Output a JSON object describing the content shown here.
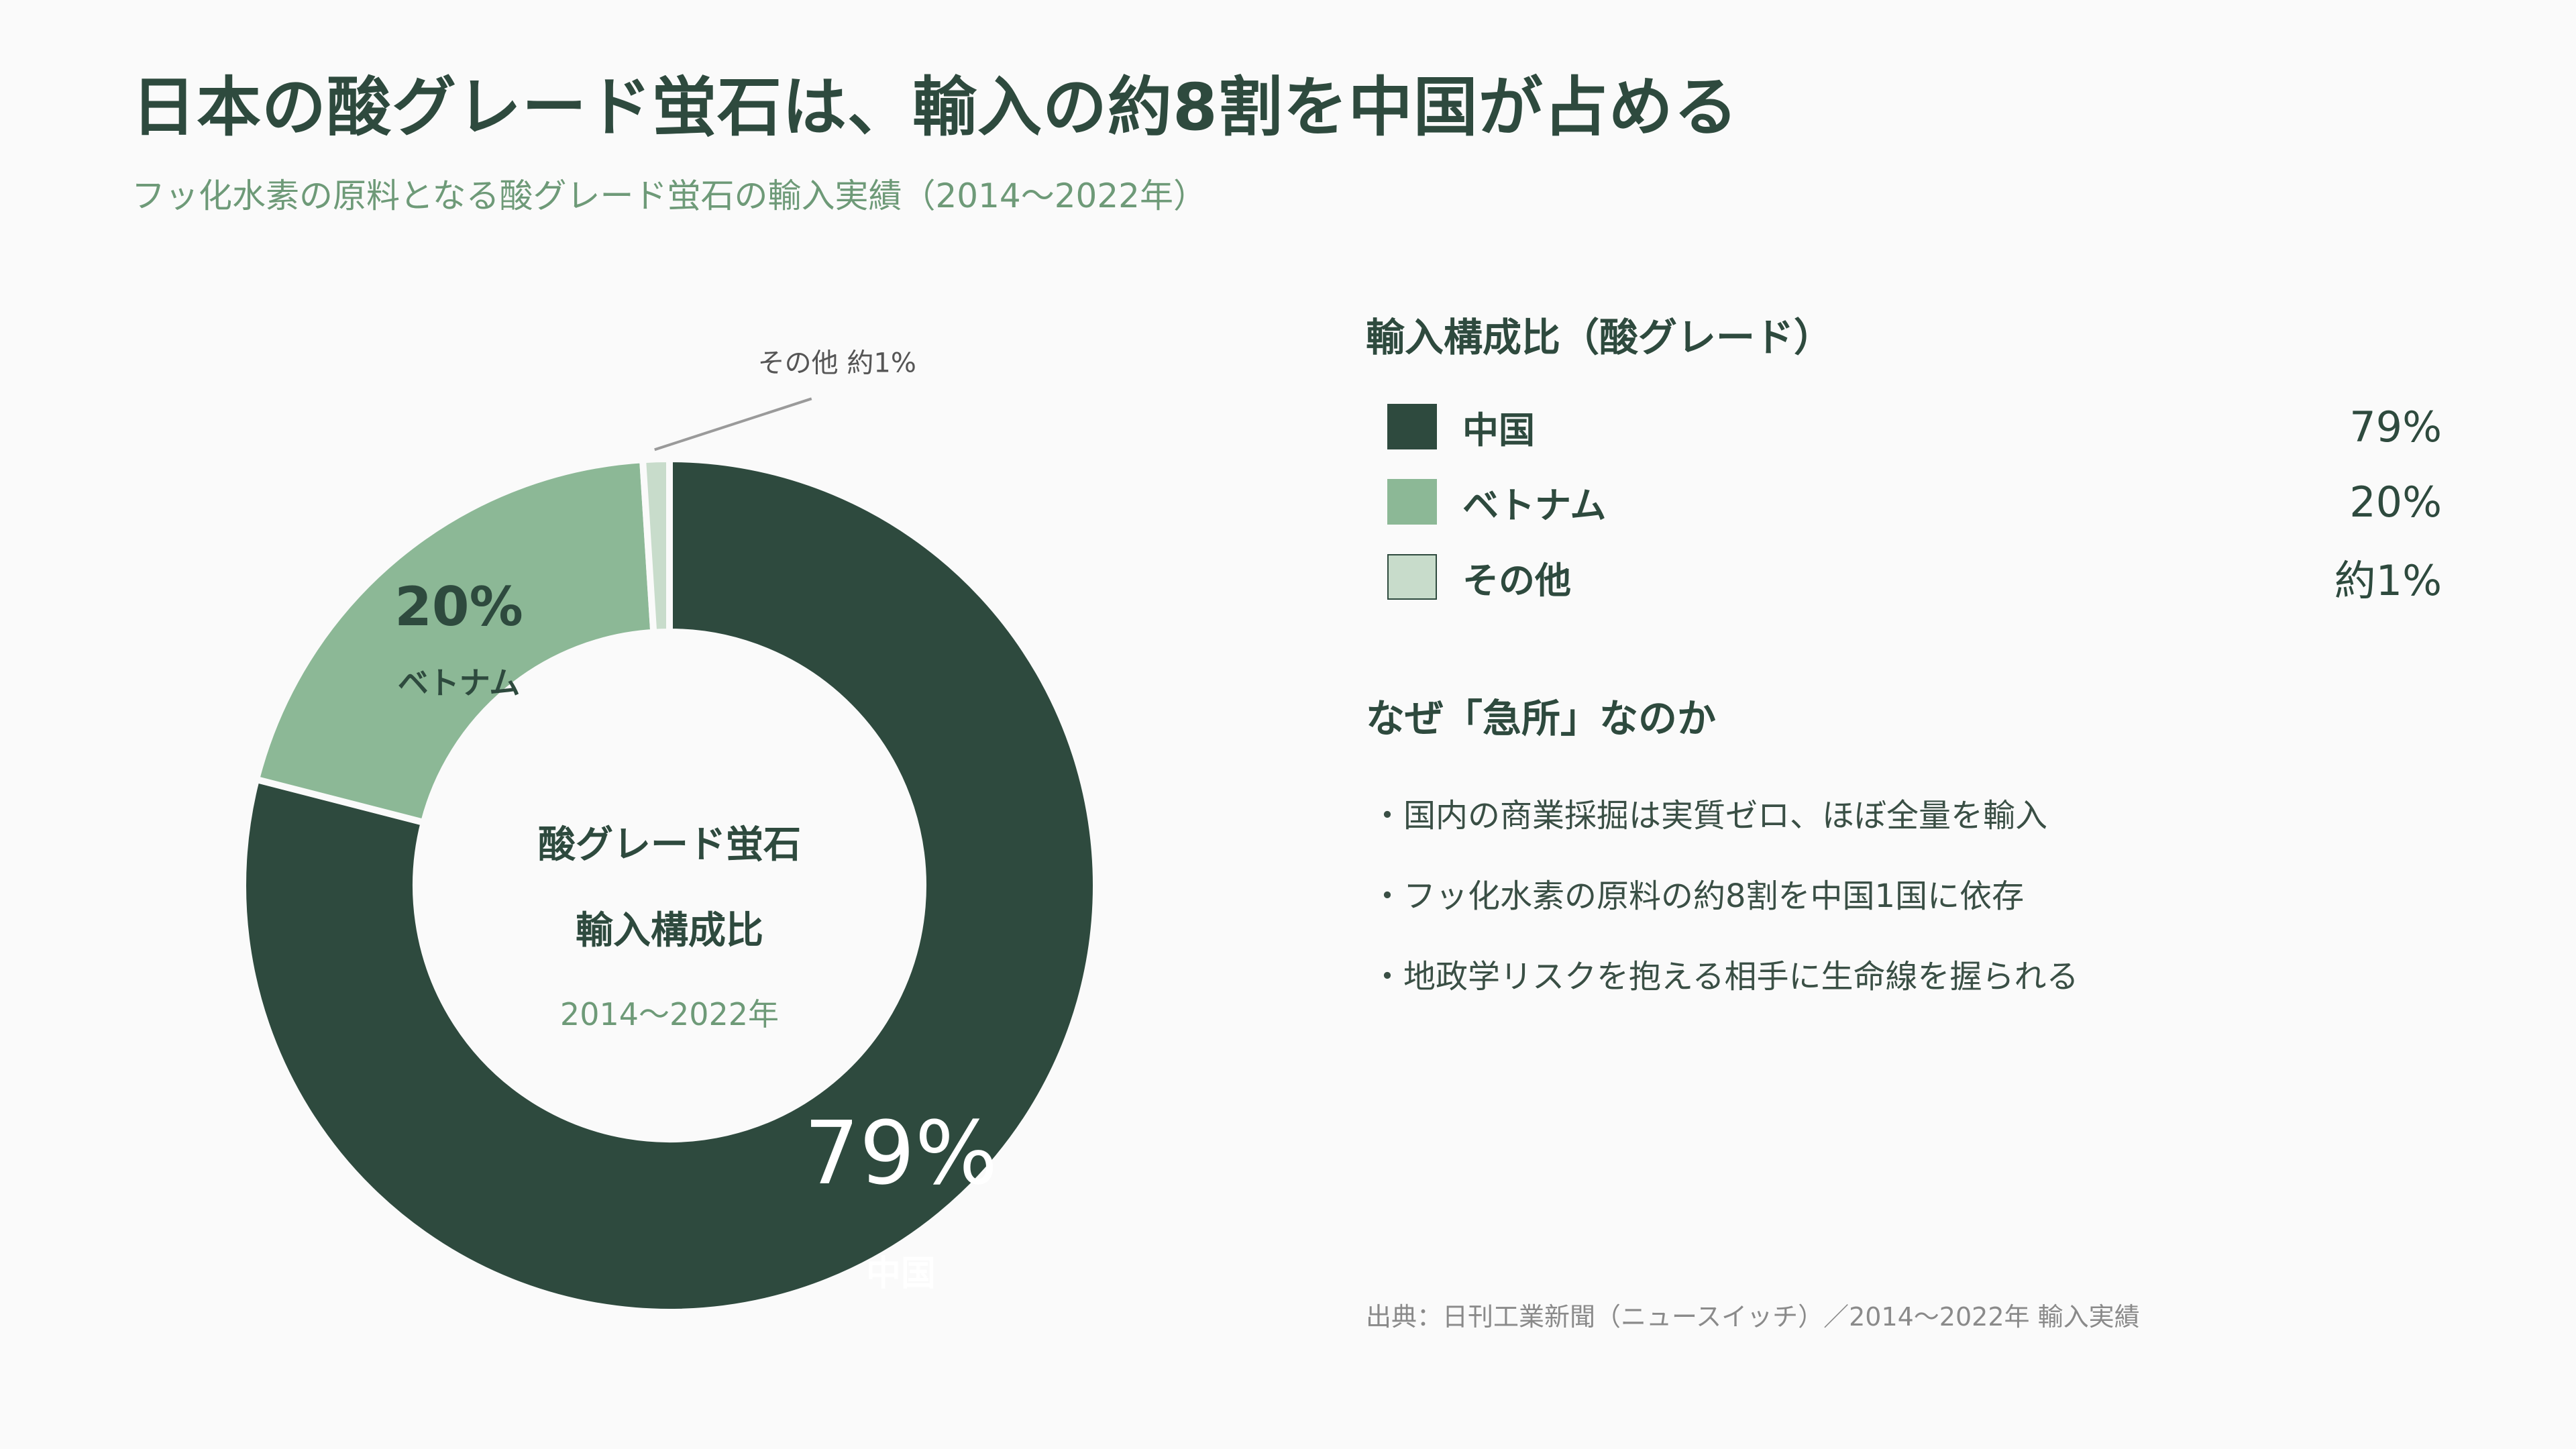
{
  "header": {
    "title": "日本の酸グレード蛍石は、輸入の約8割を中国が占める",
    "subtitle": "フッ化水素の原料となる酸グレード蛍石の輸入実績（2014〜2022年）"
  },
  "chart_data": {
    "type": "pie",
    "title": "",
    "center_label": [
      "酸グレード蛍石",
      "輸入構成比"
    ],
    "center_period": "2014〜2022年",
    "slices": [
      {
        "name": "中国",
        "value": 79,
        "label": "79%",
        "color": "#2e4a3e"
      },
      {
        "name": "ベトナム",
        "value": 20,
        "label": "20%",
        "color": "#8cb896"
      },
      {
        "name": "その他",
        "value": 1,
        "label": "その他 約1%",
        "color": "#c8dccb"
      }
    ]
  },
  "legend": {
    "title": "輸入構成比（酸グレード）",
    "items": [
      {
        "label": "中国",
        "value": "79%",
        "color": "#2e4a3e"
      },
      {
        "label": "ベトナム",
        "value": "20%",
        "color": "#8cb896"
      },
      {
        "label": "その他",
        "value": "約1%",
        "color": "#c8dccb"
      }
    ]
  },
  "why": {
    "title": "なぜ「急所」なのか",
    "items": [
      "・国内の商業採掘は実質ゼロ、ほぼ全量を輸入",
      "・フッ化水素の原料の約8割を中国1国に依存",
      "・地政学リスクを抱える相手に生命線を握られる"
    ]
  },
  "source": "出典：日刊工業新聞（ニュースイッチ）／2014〜2022年 輸入実績"
}
